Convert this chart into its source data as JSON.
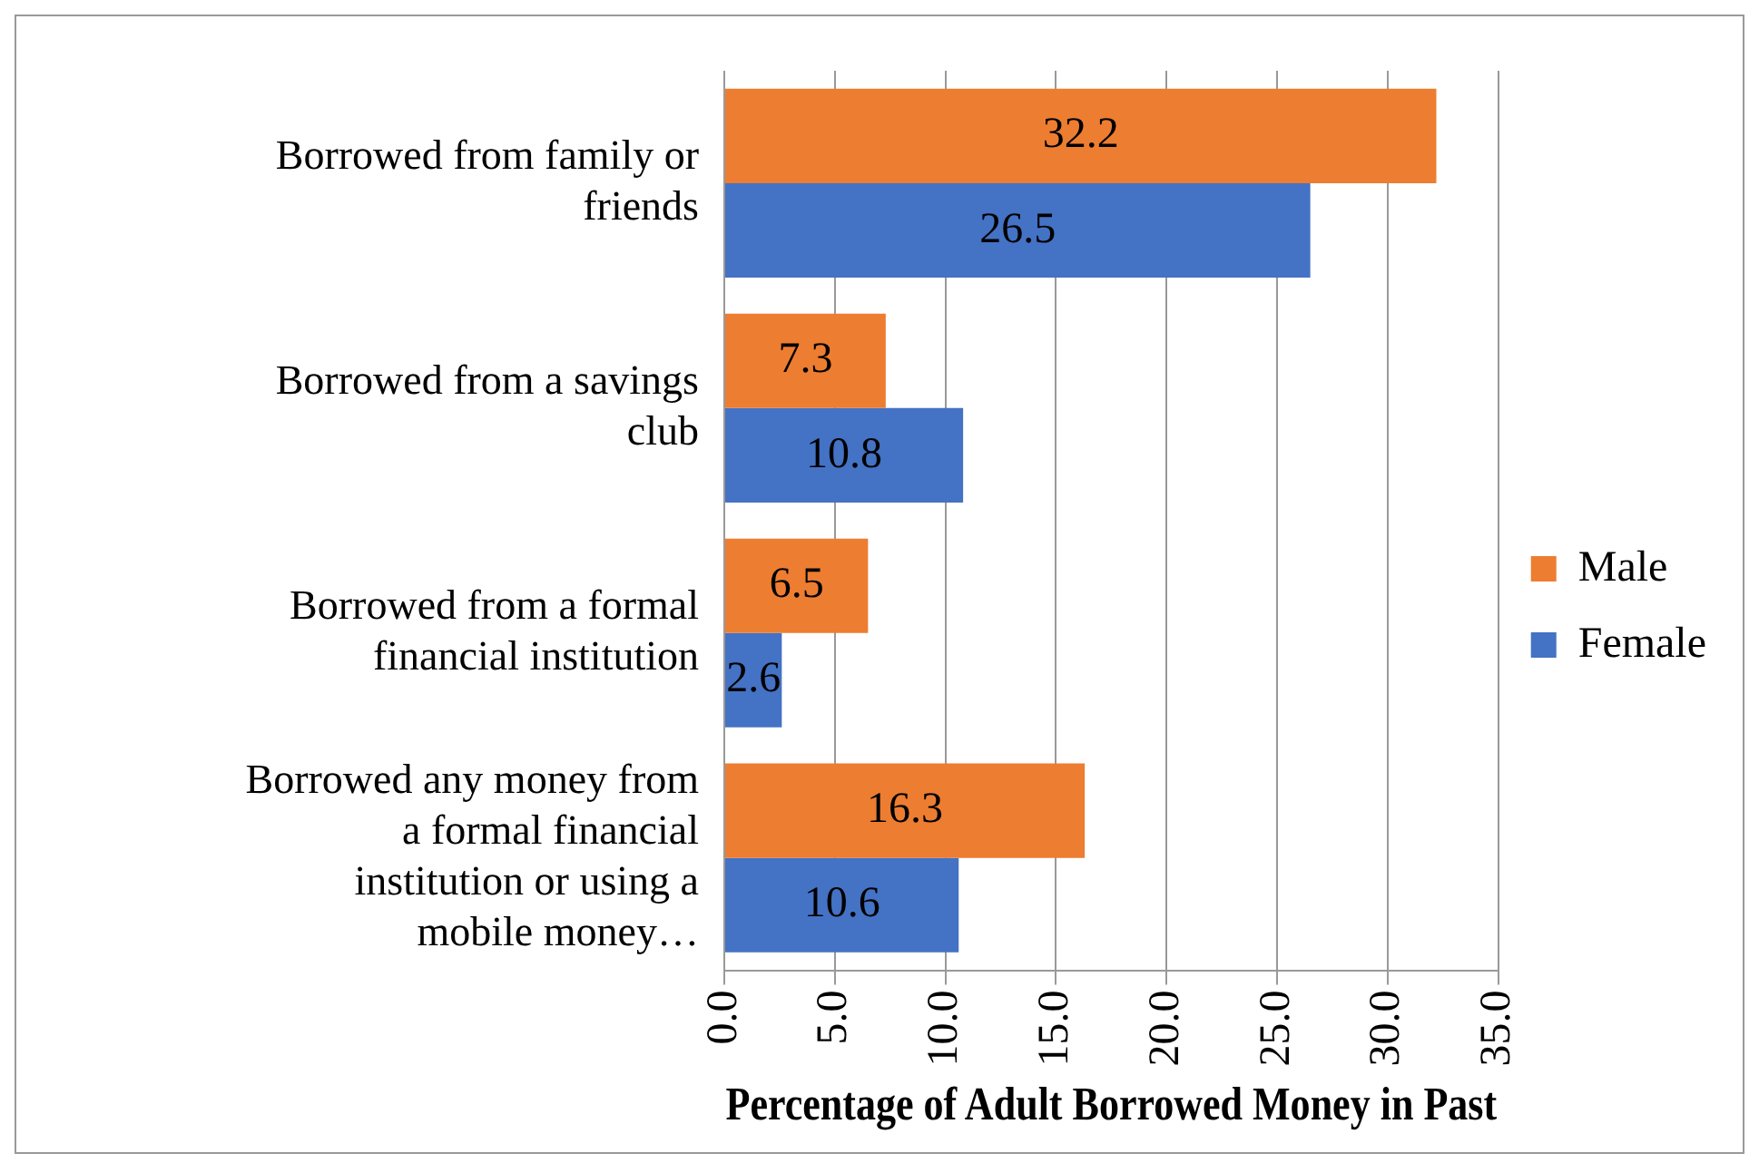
{
  "chart_data": {
    "type": "bar",
    "orientation": "horizontal",
    "xlabel": "Percentage of Adult Borrowed Money in Past",
    "categories": [
      "Borrowed from family or friends",
      "Borrowed from a savings club",
      "Borrowed from a formal financial institution",
      "Borrowed any money from a formal financial institution or using a mobile money…"
    ],
    "series": [
      {
        "name": "Male",
        "color": "#ed7d31",
        "values": [
          32.2,
          7.3,
          6.5,
          16.3
        ]
      },
      {
        "name": "Female",
        "color": "#4472c4",
        "values": [
          26.5,
          10.8,
          2.6,
          10.6
        ]
      }
    ],
    "xlim": [
      0,
      35
    ],
    "xticks": [
      {
        "value": 0,
        "label": "0.0"
      },
      {
        "value": 5,
        "label": "5.0"
      },
      {
        "value": 10,
        "label": "10.0"
      },
      {
        "value": 15,
        "label": "15.0"
      },
      {
        "value": 20,
        "label": "20.0"
      },
      {
        "value": 25,
        "label": "25.0"
      },
      {
        "value": 30,
        "label": "30.0"
      },
      {
        "value": 35,
        "label": "35.0"
      }
    ],
    "grid": "x",
    "legend": "right",
    "data_labels": true
  }
}
